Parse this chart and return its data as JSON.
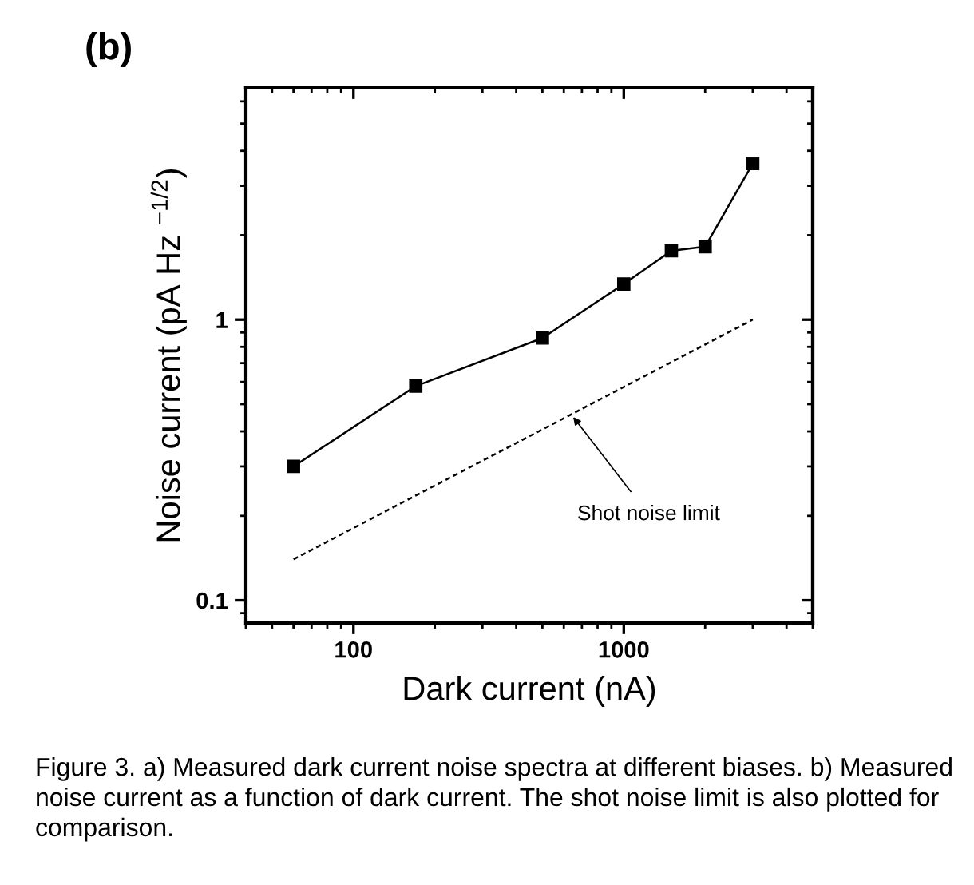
{
  "chart_data": {
    "type": "line",
    "title": "(b)",
    "xlabel": "Dark current (nA)",
    "ylabel": "Noise current (pA Hz $^{−1/2}$)",
    "log": "xy",
    "xlim": [
      40,
      5000
    ],
    "xticks": [
      {
        "value": 40,
        "label": null
      },
      {
        "value": 50,
        "label": null
      },
      {
        "value": 60,
        "label": null
      },
      {
        "value": 70,
        "label": null
      },
      {
        "value": 80,
        "label": null
      },
      {
        "value": 90,
        "label": null
      },
      100,
      {
        "value": 200,
        "label": null
      },
      {
        "value": 300,
        "label": null
      },
      {
        "value": 400,
        "label": null
      },
      {
        "value": 500,
        "label": null
      },
      {
        "value": 600,
        "label": null
      },
      {
        "value": 700,
        "label": null
      },
      {
        "value": 800,
        "label": null
      },
      {
        "value": 900,
        "label": null
      },
      1000,
      {
        "value": 2000,
        "label": null
      },
      {
        "value": 3000,
        "label": null
      },
      {
        "value": 4000,
        "label": null
      },
      {
        "value": 5000,
        "label": null
      }
    ],
    "ylim": [
      0.083,
      6.7
    ],
    "yticks": [
      {
        "value": 0.09,
        "label": null
      },
      0.1,
      {
        "value": 0.2,
        "label": null
      },
      {
        "value": 0.3,
        "label": null
      },
      {
        "value": 0.4,
        "label": null
      },
      {
        "value": 0.5,
        "label": null
      },
      {
        "value": 0.6,
        "label": null
      },
      {
        "value": 0.7,
        "label": null
      },
      {
        "value": 0.8,
        "label": null
      },
      {
        "value": 0.9,
        "label": null
      },
      1,
      {
        "value": 2,
        "label": null
      },
      {
        "value": 3,
        "label": null
      },
      {
        "value": 4,
        "label": null
      },
      {
        "value": 5,
        "label": null
      },
      {
        "value": 6,
        "label": null
      }
    ],
    "series": [
      {
        "color": "#000000",
        "x": [
          60,
          170,
          500,
          1000,
          1500,
          2000,
          3000
        ],
        "values": [
          0.3,
          0.58,
          0.86,
          1.34,
          1.76,
          1.82,
          3.6
        ],
        "marker": "square",
        "line_style": "solid"
      },
      {
        "color": "#000000",
        "x": [
          60,
          3000
        ],
        "values": [
          0.14,
          1.0
        ],
        "marker": "none",
        "line_style": "dashed"
      }
    ],
    "annotations": [
      {
        "text": "Shot noise limit",
        "x": 650,
        "y": 0.45
      },
      "Figure 3. a) Measured dark current noise spectra at different biases. b) Measured noise current as a function of dark current. The shot noise limit is also plotted for comparison."
    ]
  }
}
